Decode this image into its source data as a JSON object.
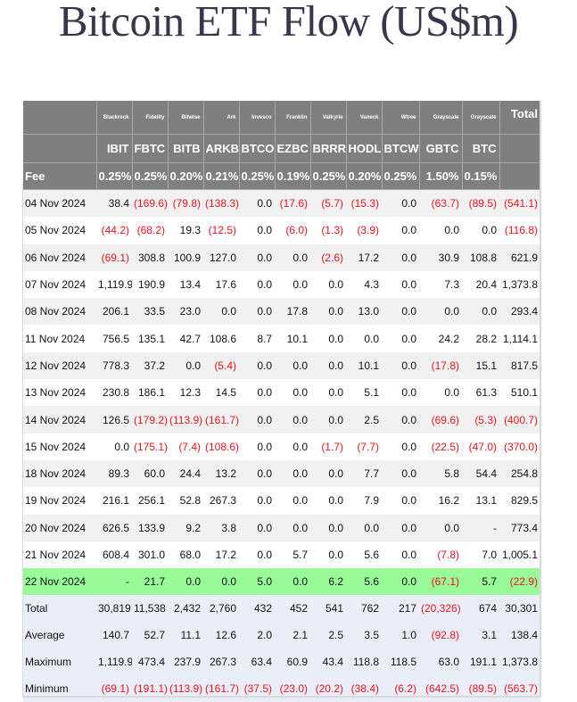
{
  "title": "Bitcoin ETF Flow (US$m)",
  "colors": {
    "header_bg": "#7f7f7f",
    "negative": "#e8141c",
    "highlight_row": "#98fb98",
    "summary_bg": "#eaeef8",
    "alt_row": "#f1f1f1"
  },
  "header": {
    "companies": [
      "Blackrock",
      "Fidelity",
      "Bitwise",
      "Ark",
      "Invesco",
      "Franklin",
      "Valkyrie",
      "Vaneck",
      "Wtree",
      "Grayscale",
      "Grayscale"
    ],
    "total_label": "Total",
    "tickers": [
      "IBIT",
      "FBTC",
      "BITB",
      "ARKB",
      "BTCO",
      "EZBC",
      "BRRR",
      "HODL",
      "BTCW",
      "GBTC",
      "BTC"
    ],
    "fee_label": "Fee",
    "fees": [
      "0.25%",
      "0.25%",
      "0.20%",
      "0.21%",
      "0.25%",
      "0.19%",
      "0.25%",
      "0.20%",
      "0.25%",
      "1.50%",
      "0.15%"
    ]
  },
  "rows": [
    {
      "date": "04 Nov 2024",
      "values": [
        "38.4",
        "(169.6)",
        "(79.8)",
        "(138.3)",
        "0.0",
        "(17.6)",
        "(5.7)",
        "(15.3)",
        "0.0",
        "(63.7)",
        "(89.5)",
        "(541.1)"
      ]
    },
    {
      "date": "05 Nov 2024",
      "values": [
        "(44.2)",
        "(68.2)",
        "19.3",
        "(12.5)",
        "0.0",
        "(6.0)",
        "(1.3)",
        "(3.9)",
        "0.0",
        "0.0",
        "0.0",
        "(116.8)"
      ]
    },
    {
      "date": "06 Nov 2024",
      "values": [
        "(69.1)",
        "308.8",
        "100.9",
        "127.0",
        "0.0",
        "0.0",
        "(2.6)",
        "17.2",
        "0.0",
        "30.9",
        "108.8",
        "621.9"
      ]
    },
    {
      "date": "07 Nov 2024",
      "values": [
        "1,119.9",
        "190.9",
        "13.4",
        "17.6",
        "0.0",
        "0.0",
        "0.0",
        "4.3",
        "0.0",
        "7.3",
        "20.4",
        "1,373.8"
      ]
    },
    {
      "date": "08 Nov 2024",
      "values": [
        "206.1",
        "33.5",
        "23.0",
        "0.0",
        "0.0",
        "17.8",
        "0.0",
        "13.0",
        "0.0",
        "0.0",
        "0.0",
        "293.4"
      ]
    },
    {
      "date": "11 Nov 2024",
      "values": [
        "756.5",
        "135.1",
        "42.7",
        "108.6",
        "8.7",
        "10.1",
        "0.0",
        "0.0",
        "0.0",
        "24.2",
        "28.2",
        "1,114.1"
      ]
    },
    {
      "date": "12 Nov 2024",
      "values": [
        "778.3",
        "37.2",
        "0.0",
        "(5.4)",
        "0.0",
        "0.0",
        "0.0",
        "10.1",
        "0.0",
        "(17.8)",
        "15.1",
        "817.5"
      ]
    },
    {
      "date": "13 Nov 2024",
      "values": [
        "230.8",
        "186.1",
        "12.3",
        "14.5",
        "0.0",
        "0.0",
        "0.0",
        "5.1",
        "0.0",
        "0.0",
        "61.3",
        "510.1"
      ]
    },
    {
      "date": "14 Nov 2024",
      "values": [
        "126.5",
        "(179.2)",
        "(113.9)",
        "(161.7)",
        "0.0",
        "0.0",
        "0.0",
        "2.5",
        "0.0",
        "(69.6)",
        "(5.3)",
        "(400.7)"
      ]
    },
    {
      "date": "15 Nov 2024",
      "values": [
        "0.0",
        "(175.1)",
        "(7.4)",
        "(108.6)",
        "0.0",
        "0.0",
        "(1.7)",
        "(7.7)",
        "0.0",
        "(22.5)",
        "(47.0)",
        "(370.0)"
      ]
    },
    {
      "date": "18 Nov 2024",
      "values": [
        "89.3",
        "60.0",
        "24.4",
        "13.2",
        "0.0",
        "0.0",
        "0.0",
        "7.7",
        "0.0",
        "5.8",
        "54.4",
        "254.8"
      ]
    },
    {
      "date": "19 Nov 2024",
      "values": [
        "216.1",
        "256.1",
        "52.8",
        "267.3",
        "0.0",
        "0.0",
        "0.0",
        "7.9",
        "0.0",
        "16.2",
        "13.1",
        "829.5"
      ]
    },
    {
      "date": "20 Nov 2024",
      "values": [
        "626.5",
        "133.9",
        "9.2",
        "3.8",
        "0.0",
        "0.0",
        "0.0",
        "0.0",
        "0.0",
        "0.0",
        "-",
        "773.4"
      ]
    },
    {
      "date": "21 Nov 2024",
      "values": [
        "608.4",
        "301.0",
        "68.0",
        "17.2",
        "0.0",
        "5.7",
        "0.0",
        "5.6",
        "0.0",
        "(7.8)",
        "7.0",
        "1,005.1"
      ]
    },
    {
      "date": "22 Nov 2024",
      "values": [
        "-",
        "21.7",
        "0.0",
        "0.0",
        "5.0",
        "0.0",
        "6.2",
        "5.6",
        "0.0",
        "(67.1)",
        "5.7",
        "(22.9)"
      ]
    }
  ],
  "summary": [
    {
      "label": "Total",
      "values": [
        "30,819",
        "11,538",
        "2,432",
        "2,760",
        "432",
        "452",
        "541",
        "762",
        "217",
        "(20,326)",
        "674",
        "30,301"
      ]
    },
    {
      "label": "Average",
      "values": [
        "140.7",
        "52.7",
        "11.1",
        "12.6",
        "2.0",
        "2.1",
        "2.5",
        "3.5",
        "1.0",
        "(92.8)",
        "3.1",
        "138.4"
      ]
    },
    {
      "label": "Maximum",
      "values": [
        "1,119.9",
        "473.4",
        "237.9",
        "267.3",
        "63.4",
        "60.9",
        "43.4",
        "118.8",
        "118.5",
        "63.0",
        "191.1",
        "1,373.8"
      ]
    },
    {
      "label": "Minimum",
      "values": [
        "(69.1)",
        "(191.1)",
        "(113.9)",
        "(161.7)",
        "(37.5)",
        "(23.0)",
        "(20.2)",
        "(38.4)",
        "(6.2)",
        "(642.5)",
        "(89.5)",
        "(563.7)"
      ]
    }
  ]
}
